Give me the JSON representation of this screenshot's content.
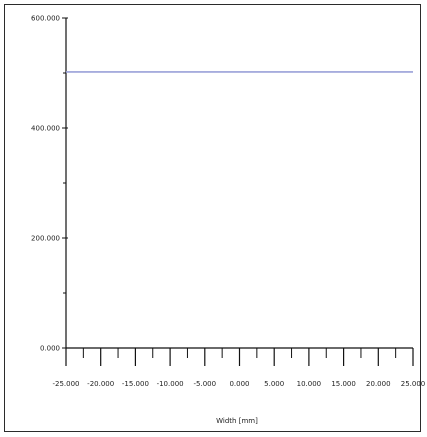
{
  "chart_data": {
    "type": "line",
    "title": "",
    "xlabel": "Width [mm]",
    "ylabel": "",
    "xlim": [
      -25,
      25
    ],
    "ylim": [
      0,
      600
    ],
    "x_ticks": [
      -25,
      -20,
      -15,
      -10,
      -5,
      0,
      5,
      10,
      15,
      20,
      25
    ],
    "x_tick_labels": [
      "-25.000",
      "-20.000",
      "-15.000",
      "-10.000",
      "-5.000",
      "0.000",
      "5.000",
      "10.000",
      "15.000",
      "20.000",
      "25.000"
    ],
    "y_ticks": [
      0,
      200,
      400,
      600
    ],
    "y_tick_labels": [
      "0.000",
      "200.000",
      "400.000",
      "600.000"
    ],
    "grid": false,
    "series": [
      {
        "x": [
          -25,
          25
        ],
        "y": [
          502,
          502
        ],
        "color": "#9aa0d8"
      }
    ]
  }
}
